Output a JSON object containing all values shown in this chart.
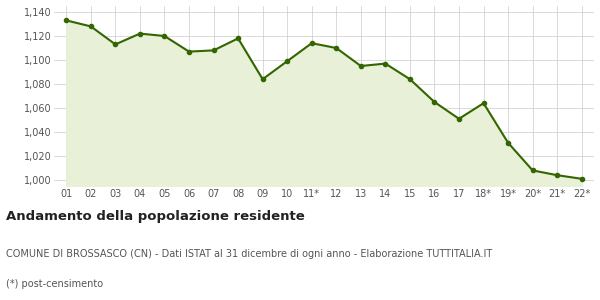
{
  "x_labels": [
    "01",
    "02",
    "03",
    "04",
    "05",
    "06",
    "07",
    "08",
    "09",
    "10",
    "11*",
    "12",
    "13",
    "14",
    "15",
    "16",
    "17",
    "18*",
    "19*",
    "20*",
    "21*",
    "22*"
  ],
  "values": [
    1133,
    1128,
    1113,
    1122,
    1120,
    1107,
    1108,
    1118,
    1084,
    1099,
    1114,
    1110,
    1095,
    1097,
    1084,
    1065,
    1051,
    1064,
    1031,
    1008,
    1004,
    1001
  ],
  "line_color": "#336600",
  "fill_color": "#e8f0d8",
  "marker": "o",
  "marker_size": 3,
  "line_width": 1.5,
  "ylim": [
    995,
    1145
  ],
  "yticks": [
    1000,
    1020,
    1040,
    1060,
    1080,
    1100,
    1120,
    1140
  ],
  "grid_color": "#cccccc",
  "background_color": "#ffffff",
  "plot_bg_color": "#ffffff",
  "title": "Andamento della popolazione residente",
  "subtitle": "COMUNE DI BROSSASCO (CN) - Dati ISTAT al 31 dicembre di ogni anno - Elaborazione TUTTITALIA.IT",
  "footnote": "(*) post-censimento",
  "title_fontsize": 9.5,
  "subtitle_fontsize": 7,
  "footnote_fontsize": 7,
  "tick_fontsize": 7
}
